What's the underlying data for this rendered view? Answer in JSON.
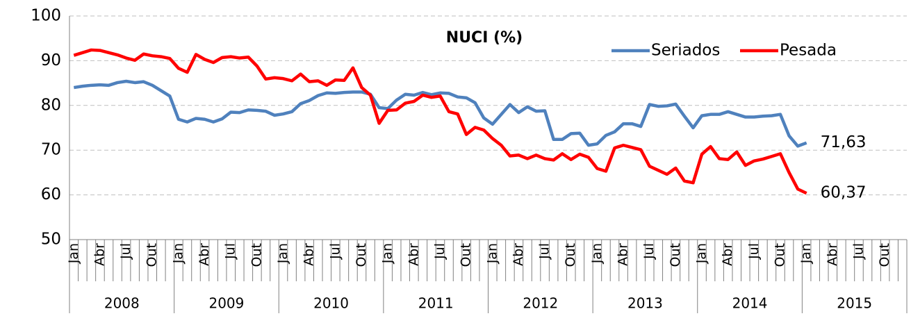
{
  "chart_data": {
    "type": "line",
    "title": "NUCI (%)",
    "categories": [
      "Jan",
      null,
      null,
      "Abr",
      null,
      null,
      "Jul",
      null,
      null,
      "Out",
      null,
      null,
      "Jan",
      null,
      null,
      "Abr",
      null,
      null,
      "Jul",
      null,
      null,
      "Out",
      null,
      null,
      "Jan",
      null,
      null,
      "Abr",
      null,
      null,
      "Jul",
      null,
      null,
      "Out",
      null,
      null,
      "Jan",
      null,
      null,
      "Abr",
      null,
      null,
      "Jul",
      null,
      null,
      "Out",
      null,
      null,
      "Jan",
      null,
      null,
      "Abr",
      null,
      null,
      "Jul",
      null,
      null,
      "Out",
      null,
      null,
      "Jan",
      null,
      null,
      "Abr",
      null,
      null,
      "Jul",
      null,
      null,
      "Out",
      null,
      null,
      "Jan",
      null,
      null,
      "Abr",
      null,
      null,
      "Jul",
      null,
      null,
      "Out",
      null,
      null,
      "Jan",
      null,
      null,
      "Abr",
      null,
      null,
      "Jul",
      null,
      null,
      "Out",
      null,
      null
    ],
    "category_groups": [
      "2008",
      "2009",
      "2010",
      "2011",
      "2012",
      "2013",
      "2014",
      "2015"
    ],
    "series": [
      {
        "name": "Seriados",
        "color": "#4f81bd",
        "values": [
          84,
          84.3,
          84.5,
          84.6,
          84.5,
          85.1,
          85.4,
          85.1,
          85.3,
          84.5,
          83.3,
          82.1,
          76.9,
          76.3,
          77.1,
          76.9,
          76.3,
          77,
          78.5,
          78.4,
          79,
          78.9,
          78.7,
          77.8,
          78.1,
          78.6,
          80.4,
          81.1,
          82.2,
          82.8,
          82.7,
          82.9,
          83,
          83,
          82.5,
          79.5,
          79.3,
          81.2,
          82.5,
          82.3,
          82.9,
          82.4,
          82.8,
          82.7,
          81.9,
          81.7,
          80.6,
          77.2,
          75.8,
          78,
          80.2,
          78.4,
          79.7,
          78.7,
          78.8,
          72.4,
          72.4,
          73.7,
          73.8,
          71.1,
          71.4,
          73.3,
          74.1,
          75.9,
          75.9,
          75.3,
          80.2,
          79.8,
          79.9,
          80.3,
          77.6,
          75,
          77.7,
          78,
          78,
          78.6,
          78,
          77.4,
          77.4,
          77.6,
          77.7,
          78,
          73.2,
          70.9,
          71.63,
          null,
          null,
          null,
          null,
          null,
          null,
          null,
          null,
          null,
          null,
          null
        ],
        "value_labels": [
          null,
          null,
          null,
          null,
          null,
          null,
          null,
          null,
          null,
          null,
          null,
          null,
          null,
          null,
          null,
          null,
          null,
          null,
          null,
          null,
          null,
          null,
          null,
          null,
          null,
          null,
          null,
          null,
          null,
          null,
          null,
          null,
          null,
          null,
          null,
          null,
          null,
          null,
          null,
          null,
          null,
          null,
          null,
          null,
          null,
          null,
          null,
          null,
          null,
          null,
          null,
          null,
          null,
          null,
          null,
          null,
          null,
          null,
          null,
          null,
          null,
          null,
          null,
          null,
          null,
          null,
          null,
          null,
          null,
          null,
          null,
          null,
          null,
          null,
          null,
          null,
          null,
          null,
          null,
          null,
          null,
          null,
          null,
          null,
          "71,63",
          null,
          null,
          null,
          null,
          null,
          null,
          null,
          null,
          null,
          null,
          null
        ]
      },
      {
        "name": "Pesada",
        "color": "#ff0000",
        "values": [
          91.2,
          91.8,
          92.4,
          92.3,
          91.8,
          91.3,
          90.6,
          90.1,
          91.5,
          91.1,
          90.9,
          90.5,
          88.3,
          87.4,
          91.4,
          90.3,
          89.6,
          90.7,
          90.9,
          90.6,
          90.8,
          88.8,
          85.9,
          86.2,
          86,
          85.5,
          87,
          85.3,
          85.5,
          84.5,
          85.7,
          85.6,
          88.4,
          84,
          82.3,
          76,
          78.9,
          79,
          80.5,
          80.9,
          82.3,
          81.8,
          82.1,
          78.6,
          78.1,
          73.5,
          75.1,
          74.5,
          72.6,
          71.1,
          68.7,
          68.9,
          68.1,
          68.9,
          68.1,
          67.8,
          69.2,
          67.9,
          69.1,
          68.4,
          65.9,
          65.3,
          70.5,
          71.1,
          70.6,
          70.1,
          66.4,
          65.5,
          64.6,
          66,
          63.1,
          62.7,
          69.1,
          70.8,
          68.1,
          67.9,
          69.6,
          66.6,
          67.6,
          68,
          68.6,
          69.2,
          65,
          61.3,
          60.37,
          null,
          null,
          null,
          null,
          null,
          null,
          null,
          null,
          null,
          null,
          null
        ],
        "value_labels": [
          null,
          null,
          null,
          null,
          null,
          null,
          null,
          null,
          null,
          null,
          null,
          null,
          null,
          null,
          null,
          null,
          null,
          null,
          null,
          null,
          null,
          null,
          null,
          null,
          null,
          null,
          null,
          null,
          null,
          null,
          null,
          null,
          null,
          null,
          null,
          null,
          null,
          null,
          null,
          null,
          null,
          null,
          null,
          null,
          null,
          null,
          null,
          null,
          null,
          null,
          null,
          null,
          null,
          null,
          null,
          null,
          null,
          null,
          null,
          null,
          null,
          null,
          null,
          null,
          null,
          null,
          null,
          null,
          null,
          null,
          null,
          null,
          null,
          null,
          null,
          null,
          null,
          null,
          null,
          null,
          null,
          null,
          null,
          null,
          "60,37",
          null,
          null,
          null,
          null,
          null,
          null,
          null,
          null,
          null,
          null,
          null
        ]
      }
    ],
    "ylim": [
      50,
      100
    ],
    "yticks": [
      50,
      60,
      70,
      80,
      90,
      100
    ],
    "grid": true,
    "legend": "top-right"
  }
}
